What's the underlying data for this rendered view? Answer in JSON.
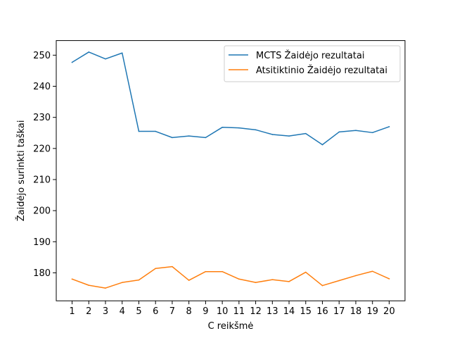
{
  "chart_data": {
    "type": "line",
    "xlabel": "C reikšmė",
    "ylabel": "Žaidėjo surinkti taškai",
    "x": [
      1,
      2,
      3,
      4,
      5,
      6,
      7,
      8,
      9,
      10,
      11,
      12,
      13,
      14,
      15,
      16,
      17,
      18,
      19,
      20
    ],
    "xlim": [
      0.05,
      20.95
    ],
    "ylim": [
      171,
      254.7
    ],
    "yticks": [
      180,
      190,
      200,
      210,
      220,
      230,
      240,
      250
    ],
    "grid": false,
    "legend_position": "top-right",
    "series": [
      {
        "name": "MCTS Žaidėjo rezultatai",
        "color": "#1f77b4",
        "values": [
          247.7,
          251.0,
          248.8,
          250.7,
          225.5,
          225.5,
          223.5,
          224.0,
          223.5,
          226.8,
          226.6,
          226.0,
          224.5,
          224.0,
          224.8,
          221.2,
          225.3,
          225.8,
          225.1,
          227.0
        ]
      },
      {
        "name": "Atsitiktinio Žaidėjo rezultatai",
        "color": "#ff7f0e",
        "values": [
          178.0,
          176.0,
          175.1,
          176.9,
          177.7,
          181.4,
          182.0,
          177.6,
          180.4,
          180.4,
          178.0,
          176.9,
          177.8,
          177.2,
          180.2,
          175.9,
          177.5,
          179.1,
          180.5,
          178.1
        ]
      }
    ]
  }
}
